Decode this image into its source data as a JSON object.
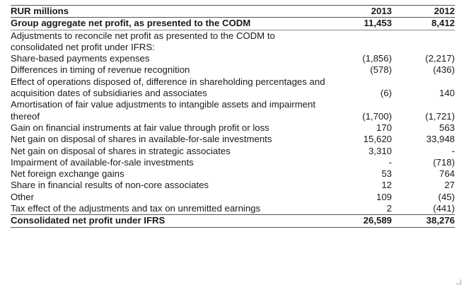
{
  "header": {
    "label": "RUR millions",
    "y2013": "2013",
    "y2012": "2012"
  },
  "rows": [
    {
      "label": "Group aggregate net profit, as presented to the CODM",
      "v2013": "11,453",
      "v2012": "8,412",
      "bold": true,
      "indent": false,
      "kind": "first"
    },
    {
      "label": "Adjustments to reconcile net profit as presented to the CODM to consolidated net profit under IFRS:",
      "v2013": "",
      "v2012": "",
      "bold": false,
      "indent": false
    },
    {
      "label": "Share-based payments expenses",
      "v2013": "(1,856)",
      "v2012": "(2,217)",
      "bold": false,
      "indent": true
    },
    {
      "label": "Differences in timing of revenue recognition",
      "v2013": "(578)",
      "v2012": "(436)",
      "bold": false,
      "indent": true
    },
    {
      "label": "Effect of operations disposed of, difference in shareholding percentages and acquisition dates of subsidiaries and associates",
      "v2013": "(6)",
      "v2012": "140",
      "bold": false,
      "indent": true
    },
    {
      "label": "Amortisation of fair value adjustments to intangible assets and impairment thereof",
      "v2013": "(1,700)",
      "v2012": "(1,721)",
      "bold": false,
      "indent": true
    },
    {
      "label": "Gain on financial instruments at fair value through profit or loss",
      "v2013": "170",
      "v2012": "563",
      "bold": false,
      "indent": true
    },
    {
      "label": "Net gain on disposal of shares in available-for-sale investments",
      "v2013": "15,620",
      "v2012": "33,948",
      "bold": false,
      "indent": true
    },
    {
      "label": "Net gain on disposal of shares in strategic associates",
      "v2013": "3,310",
      "v2012": "-",
      "bold": false,
      "indent": true
    },
    {
      "label": "Impairment of available-for-sale investments",
      "v2013": "-",
      "v2012": "(718)",
      "bold": false,
      "indent": true
    },
    {
      "label": "Net foreign exchange gains",
      "v2013": "53",
      "v2012": "764",
      "bold": false,
      "indent": true
    },
    {
      "label": "Share in financial results of non-core associates",
      "v2013": "12",
      "v2012": "27",
      "bold": false,
      "indent": true
    },
    {
      "label": "Other",
      "v2013": "109",
      "v2012": "(45)",
      "bold": false,
      "indent": true
    },
    {
      "label": "Tax effect of the adjustments and tax on unremitted earnings",
      "v2013": "2",
      "v2012": "(441)",
      "bold": false,
      "indent": true
    },
    {
      "label": "Consolidated net profit under IFRS",
      "v2013": "26,589",
      "v2012": "38,276",
      "bold": true,
      "indent": false,
      "kind": "total"
    }
  ]
}
